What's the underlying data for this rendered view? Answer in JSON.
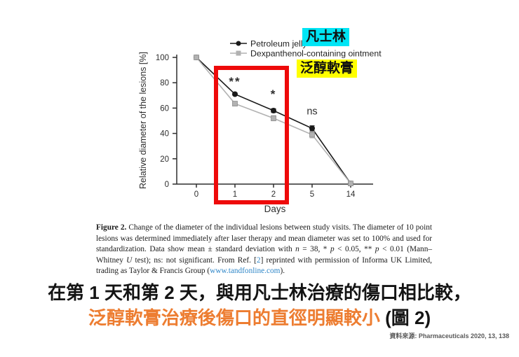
{
  "page": {
    "background": "#ffffff"
  },
  "chart_data": {
    "type": "line",
    "title": "",
    "xlabel": "Days",
    "ylabel": "Relative diameter of the lesions [%]",
    "categories": [
      "0",
      "1",
      "2",
      "5",
      "14"
    ],
    "ylim": [
      0,
      100
    ],
    "yticks": [
      0,
      20,
      40,
      60,
      80,
      100
    ],
    "grid": false,
    "legend_position": "top",
    "series": [
      {
        "name": "Petroleum jelly",
        "color": "#1a1a1a",
        "marker": "circle",
        "values": [
          100,
          71,
          58,
          44,
          0.5
        ],
        "errors": [
          0,
          1,
          1.5,
          2,
          0
        ]
      },
      {
        "name": "Dexpanthenol-containing ointment",
        "color": "#b2b2b2",
        "marker": "square",
        "values": [
          100,
          63.5,
          52,
          39,
          0.5
        ],
        "errors": [
          0,
          1.5,
          2,
          2.5,
          0
        ]
      }
    ],
    "annotations": [
      {
        "text": "**",
        "x": "1",
        "y_pct": 78
      },
      {
        "text": "*",
        "x": "2",
        "y_pct": 68
      },
      {
        "text": "ns",
        "x": "5",
        "y_pct": 55
      }
    ]
  },
  "overlays": {
    "label_petroleum_zh": "凡士林",
    "label_dexpanthenol_zh": "泛醇軟膏",
    "highlight_cyan": "#00e5f5",
    "highlight_yellow": "#ffff00",
    "box_color": "#ee0a0a"
  },
  "caption": {
    "segments": [
      {
        "style": "bold",
        "text": "Figure 2. "
      },
      {
        "style": "normal",
        "text": "Change of the diameter of the individual lesions between study visits. The diameter of 10 point lesions was determined immediately after laser therapy and mean diameter was set to 100% and used for standardization. Data show mean ± standard deviation with "
      },
      {
        "style": "italic",
        "text": "n"
      },
      {
        "style": "normal",
        "text": " = 38, * "
      },
      {
        "style": "italic",
        "text": "p"
      },
      {
        "style": "normal",
        "text": " < 0.05, ** "
      },
      {
        "style": "italic",
        "text": "p"
      },
      {
        "style": "normal",
        "text": " < 0.01 (Mann–Whitney "
      },
      {
        "style": "italic",
        "text": "U"
      },
      {
        "style": "normal",
        "text": " test); ns: not significant. From Ref. ["
      },
      {
        "style": "link",
        "text": "2"
      },
      {
        "style": "normal",
        "text": "] reprinted with permission of Informa UK Limited, trading as Taylor & Francis Group ("
      },
      {
        "style": "link",
        "text": "www.tandfonline.com"
      },
      {
        "style": "normal",
        "text": ")."
      }
    ]
  },
  "headline": {
    "line1": "在第 1 天和第 2 天，與用凡士林治療的傷口相比較，",
    "line2_highlight": "泛醇軟膏治療後傷口的直徑明顯較小",
    "line2_suffix": " (圖 2)",
    "highlight_color": "#ed7d31"
  },
  "source": {
    "prefix": "資料來源: ",
    "citation": "Pharmaceuticals 2020, 13, 138"
  }
}
